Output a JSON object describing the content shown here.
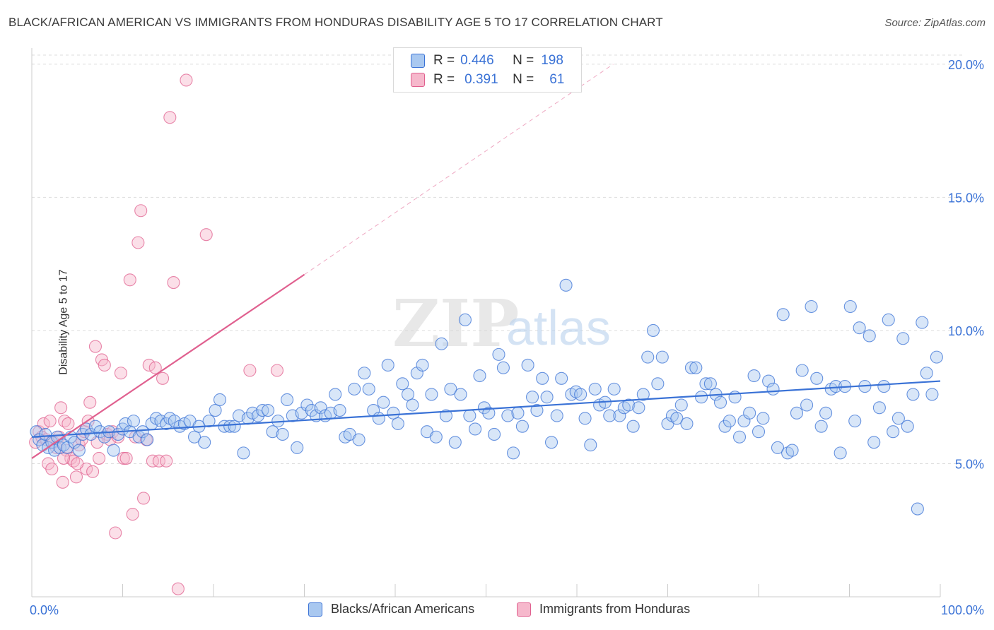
{
  "title": "BLACK/AFRICAN AMERICAN VS IMMIGRANTS FROM HONDURAS DISABILITY AGE 5 TO 17 CORRELATION CHART",
  "source": "Source: ZipAtlas.com",
  "watermark": {
    "zip": "ZIP",
    "atlas": "atlas"
  },
  "legend": {
    "blue": {
      "r_label": "R =",
      "r_value": "0.446",
      "n_label": "N =",
      "n_value": "198"
    },
    "pink": {
      "r_label": "R =",
      "r_value": "0.391",
      "n_label": "N =",
      "n_value": "61"
    }
  },
  "colors": {
    "blue": "#3a72d6",
    "blue_fill": "#a9c8f0",
    "pink": "#e0608f",
    "pink_fill": "#f6b8cc",
    "grid": "#dddddd"
  },
  "chart_data": {
    "type": "scatter",
    "ylabel": "Disability Age 5 to 17",
    "xlim": [
      0,
      100
    ],
    "ylim": [
      0,
      20.5
    ],
    "x_tick_labels": [
      "0.0%",
      "100.0%"
    ],
    "y_ticks": [
      5,
      10,
      15,
      20
    ],
    "y_tick_labels": [
      "5.0%",
      "10.0%",
      "15.0%",
      "20.0%"
    ],
    "grid": "horizontal dashed",
    "legend_placement": "top-center",
    "series": [
      {
        "name": "Blacks/African Americans",
        "color": "#3a72d6",
        "trend": {
          "x": [
            0,
            100
          ],
          "y": [
            6.0,
            8.1
          ],
          "style": "solid"
        },
        "points": [
          [
            0.5,
            6.2
          ],
          [
            0.8,
            5.9
          ],
          [
            1.2,
            5.7
          ],
          [
            1.5,
            6.1
          ],
          [
            1.8,
            5.6
          ],
          [
            2.2,
            5.8
          ],
          [
            2.5,
            5.5
          ],
          [
            2.8,
            6.0
          ],
          [
            3.1,
            5.6
          ],
          [
            3.5,
            5.7
          ],
          [
            3.9,
            5.6
          ],
          [
            4.3,
            6.0
          ],
          [
            4.7,
            5.8
          ],
          [
            5.2,
            5.5
          ],
          [
            5.6,
            6.1
          ],
          [
            6.0,
            6.3
          ],
          [
            6.5,
            6.1
          ],
          [
            7.0,
            6.4
          ],
          [
            7.5,
            6.2
          ],
          [
            8.0,
            6.0
          ],
          [
            8.5,
            6.2
          ],
          [
            9.0,
            5.5
          ],
          [
            9.5,
            6.1
          ],
          [
            10.0,
            6.3
          ],
          [
            10.3,
            6.5
          ],
          [
            10.8,
            6.2
          ],
          [
            11.2,
            6.6
          ],
          [
            11.8,
            6.0
          ],
          [
            12.2,
            6.2
          ],
          [
            12.7,
            5.9
          ],
          [
            13.2,
            6.5
          ],
          [
            13.7,
            6.7
          ],
          [
            14.2,
            6.6
          ],
          [
            14.8,
            6.5
          ],
          [
            15.2,
            6.7
          ],
          [
            15.7,
            6.6
          ],
          [
            16.3,
            6.4
          ],
          [
            16.8,
            6.5
          ],
          [
            17.4,
            6.6
          ],
          [
            17.9,
            6.0
          ],
          [
            18.4,
            6.4
          ],
          [
            19.0,
            5.8
          ],
          [
            19.5,
            6.6
          ],
          [
            20.2,
            7.0
          ],
          [
            20.7,
            7.4
          ],
          [
            21.2,
            6.4
          ],
          [
            21.8,
            6.4
          ],
          [
            22.3,
            6.4
          ],
          [
            22.8,
            6.8
          ],
          [
            23.3,
            5.4
          ],
          [
            23.8,
            6.7
          ],
          [
            24.3,
            6.9
          ],
          [
            24.9,
            6.8
          ],
          [
            25.4,
            7.0
          ],
          [
            26.0,
            7.0
          ],
          [
            26.5,
            6.2
          ],
          [
            27.1,
            6.6
          ],
          [
            27.6,
            6.1
          ],
          [
            28.1,
            7.4
          ],
          [
            28.7,
            6.8
          ],
          [
            29.2,
            5.6
          ],
          [
            29.7,
            6.9
          ],
          [
            30.3,
            7.2
          ],
          [
            30.8,
            7.0
          ],
          [
            31.3,
            6.8
          ],
          [
            31.8,
            7.1
          ],
          [
            32.3,
            6.8
          ],
          [
            32.9,
            6.9
          ],
          [
            33.4,
            7.6
          ],
          [
            33.9,
            7.0
          ],
          [
            34.5,
            6.0
          ],
          [
            35.0,
            6.1
          ],
          [
            35.5,
            7.8
          ],
          [
            36.0,
            5.9
          ],
          [
            36.6,
            8.4
          ],
          [
            37.1,
            7.8
          ],
          [
            37.6,
            7.0
          ],
          [
            38.2,
            6.7
          ],
          [
            38.7,
            7.3
          ],
          [
            39.2,
            8.7
          ],
          [
            39.8,
            6.9
          ],
          [
            40.3,
            6.5
          ],
          [
            40.8,
            8.0
          ],
          [
            41.4,
            7.6
          ],
          [
            41.9,
            7.2
          ],
          [
            42.4,
            8.4
          ],
          [
            43.0,
            8.7
          ],
          [
            43.5,
            6.2
          ],
          [
            44.0,
            7.6
          ],
          [
            44.5,
            6.0
          ],
          [
            45.1,
            9.5
          ],
          [
            45.6,
            6.8
          ],
          [
            46.1,
            7.8
          ],
          [
            46.6,
            5.8
          ],
          [
            47.2,
            7.6
          ],
          [
            47.7,
            10.4
          ],
          [
            48.2,
            6.8
          ],
          [
            48.8,
            6.3
          ],
          [
            49.3,
            8.3
          ],
          [
            49.8,
            7.1
          ],
          [
            50.3,
            6.9
          ],
          [
            50.9,
            6.1
          ],
          [
            51.4,
            9.1
          ],
          [
            51.9,
            8.6
          ],
          [
            52.4,
            6.8
          ],
          [
            53.0,
            5.4
          ],
          [
            53.5,
            6.9
          ],
          [
            54.0,
            6.4
          ],
          [
            54.6,
            8.7
          ],
          [
            55.1,
            7.5
          ],
          [
            55.6,
            7.0
          ],
          [
            56.2,
            8.2
          ],
          [
            56.7,
            7.5
          ],
          [
            57.2,
            5.8
          ],
          [
            57.8,
            6.8
          ],
          [
            58.3,
            8.2
          ],
          [
            58.8,
            11.7
          ],
          [
            59.4,
            7.6
          ],
          [
            59.9,
            7.7
          ],
          [
            60.4,
            7.6
          ],
          [
            60.9,
            6.7
          ],
          [
            61.5,
            5.7
          ],
          [
            62.0,
            7.8
          ],
          [
            62.5,
            7.2
          ],
          [
            63.1,
            7.3
          ],
          [
            63.6,
            6.8
          ],
          [
            64.1,
            7.8
          ],
          [
            64.7,
            6.8
          ],
          [
            65.2,
            7.1
          ],
          [
            65.7,
            7.2
          ],
          [
            66.2,
            6.4
          ],
          [
            66.8,
            7.1
          ],
          [
            67.3,
            7.6
          ],
          [
            67.8,
            9.0
          ],
          [
            68.4,
            10.0
          ],
          [
            68.9,
            8.0
          ],
          [
            69.4,
            9.0
          ],
          [
            70.0,
            6.5
          ],
          [
            70.5,
            6.8
          ],
          [
            71.0,
            6.7
          ],
          [
            71.5,
            7.2
          ],
          [
            72.1,
            6.5
          ],
          [
            72.6,
            8.6
          ],
          [
            73.1,
            8.6
          ],
          [
            73.7,
            7.5
          ],
          [
            74.2,
            8.0
          ],
          [
            74.7,
            8.0
          ],
          [
            75.3,
            7.6
          ],
          [
            75.8,
            7.3
          ],
          [
            76.3,
            6.4
          ],
          [
            76.8,
            6.6
          ],
          [
            77.4,
            7.5
          ],
          [
            77.9,
            6.0
          ],
          [
            78.4,
            6.6
          ],
          [
            79.0,
            6.9
          ],
          [
            79.5,
            8.3
          ],
          [
            80.0,
            6.2
          ],
          [
            80.5,
            6.7
          ],
          [
            81.1,
            8.1
          ],
          [
            81.6,
            7.8
          ],
          [
            82.1,
            5.6
          ],
          [
            82.7,
            10.6
          ],
          [
            83.2,
            5.4
          ],
          [
            83.7,
            5.5
          ],
          [
            84.2,
            6.9
          ],
          [
            84.8,
            8.5
          ],
          [
            85.3,
            7.2
          ],
          [
            85.8,
            10.9
          ],
          [
            86.4,
            8.2
          ],
          [
            86.9,
            6.4
          ],
          [
            87.4,
            6.9
          ],
          [
            88.0,
            7.8
          ],
          [
            88.5,
            7.9
          ],
          [
            89.0,
            5.4
          ],
          [
            89.5,
            7.9
          ],
          [
            90.1,
            10.9
          ],
          [
            90.6,
            6.6
          ],
          [
            91.1,
            10.1
          ],
          [
            91.7,
            7.9
          ],
          [
            92.2,
            9.8
          ],
          [
            92.7,
            5.8
          ],
          [
            93.3,
            7.1
          ],
          [
            93.8,
            7.9
          ],
          [
            94.3,
            10.4
          ],
          [
            94.8,
            6.2
          ],
          [
            95.4,
            6.7
          ],
          [
            95.9,
            9.7
          ],
          [
            96.4,
            6.4
          ],
          [
            97.0,
            7.6
          ],
          [
            97.5,
            3.3
          ],
          [
            98.0,
            10.3
          ],
          [
            98.5,
            8.4
          ],
          [
            99.1,
            7.6
          ],
          [
            99.6,
            9.0
          ]
        ]
      },
      {
        "name": "Immigrants from Honduras",
        "color": "#e0608f",
        "trend": {
          "x": [
            0,
            30
          ],
          "y": [
            5.2,
            12.1
          ],
          "style": "solid",
          "extension": {
            "x": [
              30,
              64
            ],
            "y": [
              12.1,
              20.0
            ],
            "style": "dashed"
          }
        },
        "points": [
          [
            0.4,
            5.8
          ],
          [
            0.8,
            6.2
          ],
          [
            1.1,
            6.0
          ],
          [
            1.3,
            6.5
          ],
          [
            1.6,
            5.9
          ],
          [
            1.8,
            5.0
          ],
          [
            2.0,
            6.6
          ],
          [
            2.2,
            4.8
          ],
          [
            2.4,
            5.8
          ],
          [
            2.7,
            5.6
          ],
          [
            3.0,
            6.0
          ],
          [
            3.2,
            7.1
          ],
          [
            3.4,
            4.3
          ],
          [
            3.6,
            6.6
          ],
          [
            3.8,
            5.5
          ],
          [
            4.0,
            6.5
          ],
          [
            4.3,
            5.2
          ],
          [
            4.6,
            5.1
          ],
          [
            4.9,
            4.5
          ],
          [
            5.2,
            5.7
          ],
          [
            5.5,
            5.9
          ],
          [
            5.8,
            6.2
          ],
          [
            6.0,
            4.8
          ],
          [
            6.2,
            6.6
          ],
          [
            6.4,
            7.3
          ],
          [
            6.7,
            4.7
          ],
          [
            7.0,
            9.4
          ],
          [
            7.2,
            5.8
          ],
          [
            7.4,
            5.2
          ],
          [
            7.7,
            8.9
          ],
          [
            8.0,
            8.7
          ],
          [
            8.3,
            6.1
          ],
          [
            8.6,
            5.9
          ],
          [
            8.9,
            6.2
          ],
          [
            9.2,
            2.4
          ],
          [
            9.5,
            6.0
          ],
          [
            9.8,
            8.4
          ],
          [
            10.1,
            5.2
          ],
          [
            10.4,
            5.2
          ],
          [
            10.8,
            11.9
          ],
          [
            11.1,
            3.1
          ],
          [
            11.4,
            6.0
          ],
          [
            11.7,
            13.3
          ],
          [
            12.0,
            14.5
          ],
          [
            12.3,
            3.7
          ],
          [
            12.6,
            5.9
          ],
          [
            12.9,
            8.7
          ],
          [
            13.3,
            5.1
          ],
          [
            13.6,
            8.6
          ],
          [
            14.0,
            5.1
          ],
          [
            14.4,
            8.2
          ],
          [
            14.8,
            5.1
          ],
          [
            15.2,
            18.0
          ],
          [
            15.6,
            11.8
          ],
          [
            16.1,
            0.3
          ],
          [
            17.0,
            19.4
          ],
          [
            19.2,
            13.6
          ],
          [
            24.0,
            8.5
          ],
          [
            27.0,
            8.5
          ],
          [
            3.5,
            5.2
          ],
          [
            5.0,
            5.0
          ]
        ]
      }
    ]
  }
}
